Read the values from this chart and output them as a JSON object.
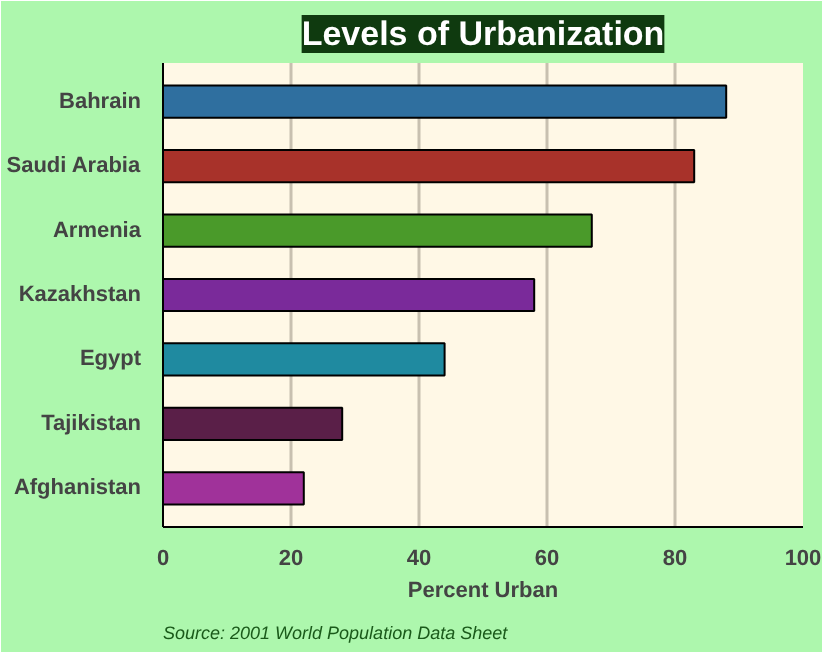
{
  "chart_data": {
    "type": "bar",
    "orientation": "horizontal",
    "title": "Levels of Urbanization",
    "xlabel": "Percent Urban",
    "categories": [
      "Bahrain",
      "Saudi Arabia",
      "Armenia",
      "Kazakhstan",
      "Egypt",
      "Tajikistan",
      "Afghanistan"
    ],
    "values": [
      88,
      83,
      67,
      58,
      44,
      28,
      22
    ],
    "colors": [
      "#2f6f9f",
      "#a8322a",
      "#4a9a2a",
      "#7a2a9a",
      "#1f8aa0",
      "#5a1f48",
      "#a0329a"
    ],
    "xlim": [
      0,
      100
    ],
    "xticks": [
      0,
      20,
      40,
      60,
      80,
      100
    ],
    "grid": "x",
    "annotations": [
      "Source: 2001 World Population Data Sheet"
    ]
  }
}
